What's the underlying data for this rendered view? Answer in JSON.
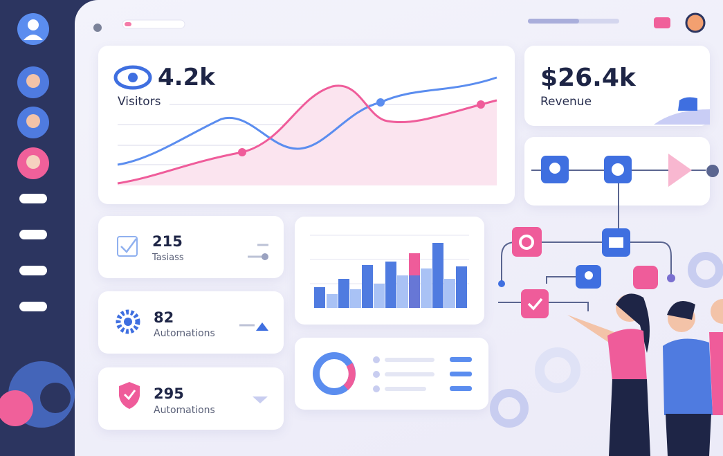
{
  "visitors_card": {
    "value": "4.2k",
    "label": "Visitors"
  },
  "revenue_card": {
    "value": "$26.4k",
    "label": "Revenue"
  },
  "stat_cards": [
    {
      "value": "215",
      "label": "Tasiass"
    },
    {
      "value": "82",
      "label": "Automations"
    },
    {
      "value": "295",
      "label": "Automations"
    }
  ]
}
